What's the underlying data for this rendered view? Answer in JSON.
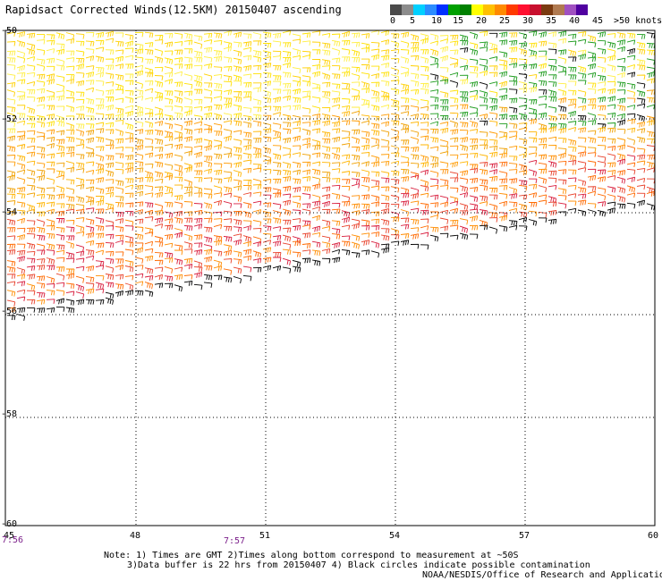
{
  "title": "Rapidsact Corrected Winds(12.5KM) 20150407 ascending",
  "legend": {
    "colors": [
      "#4a4a4a",
      "#8c8c8c",
      "#00d0ff",
      "#2b8cff",
      "#0030ff",
      "#00a000",
      "#008000",
      "#ffff00",
      "#ffc000",
      "#ff8a00",
      "#ff3a00",
      "#ff1030",
      "#c8102e",
      "#7a3a10",
      "#b07a50",
      "#a050c0",
      "#5000a0"
    ],
    "labels": [
      "0",
      "5",
      "10",
      "15",
      "20",
      "25",
      "30",
      "35",
      "40",
      "45",
      ">50 knots"
    ]
  },
  "axes": {
    "lon_ticks": [
      "45",
      "48",
      "51",
      "54",
      "57",
      "60"
    ],
    "lat_ticks": [
      "-50",
      "-52",
      "-54",
      "-56",
      "-58",
      "-60"
    ]
  },
  "times": [
    "7:56",
    "7:57"
  ],
  "notes": [
    "Note: 1) Times are GMT 2)Times along bottom correspond to measurement at ~50S",
    "3)Data buffer is 22 hrs from 20150407 4) Black circles indicate possible contamination",
    "NOAA/NESDIS/Office of Research and Applications"
  ]
}
